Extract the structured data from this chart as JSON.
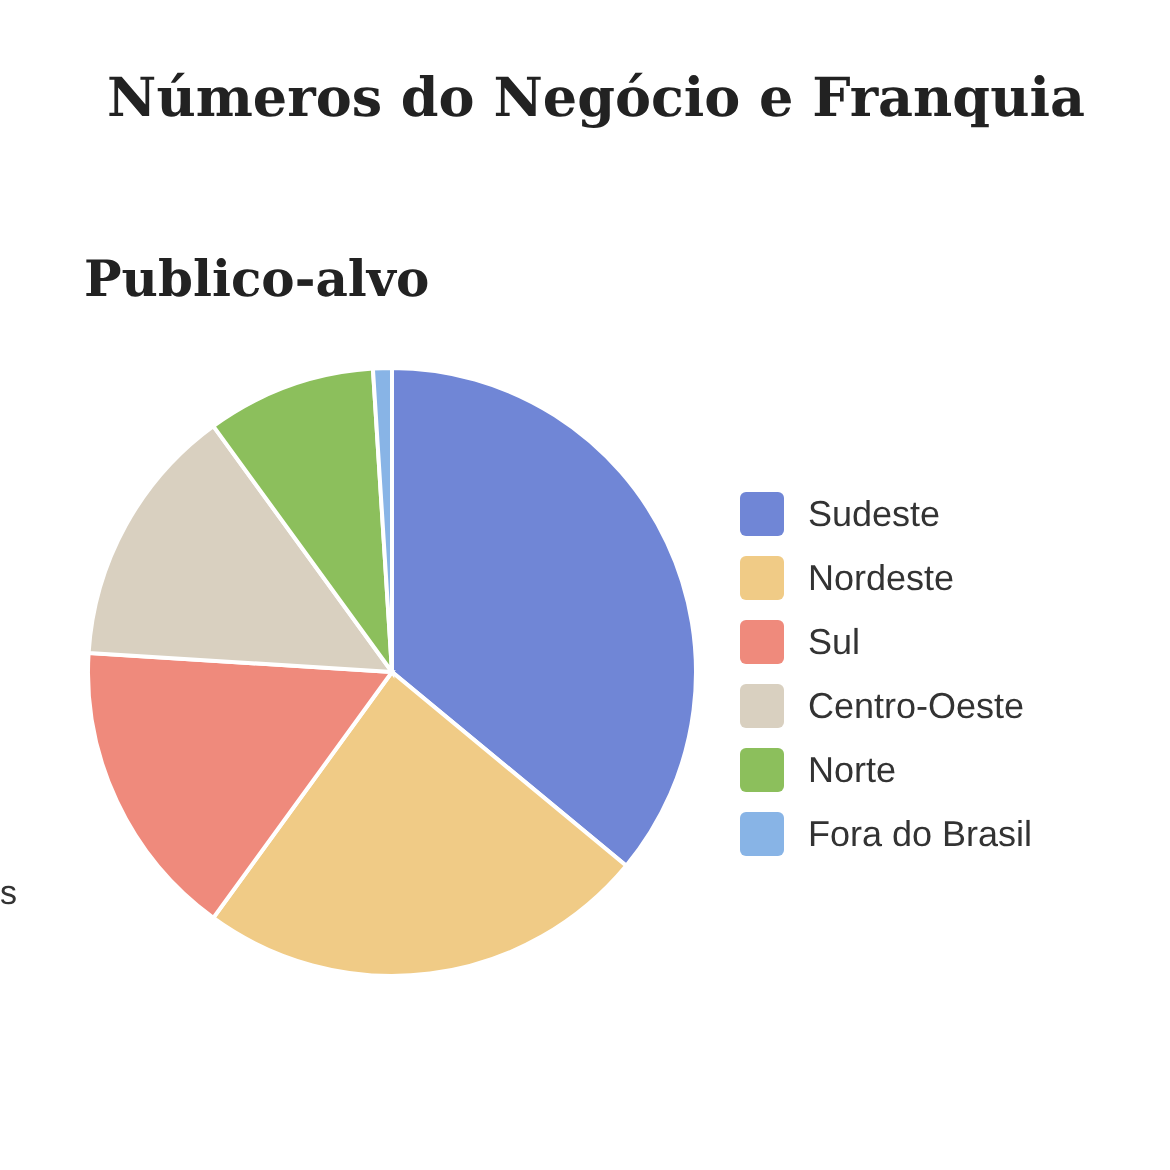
{
  "chart_data": {
    "type": "pie",
    "title": "Números do Negócio e Franquia",
    "subtitle": "Publico-alvo",
    "categories": [
      "Sudeste",
      "Nordeste",
      "Sul",
      "Centro-Oeste",
      "Norte",
      "Fora do Brasil"
    ],
    "values": [
      36,
      24,
      16,
      14,
      9,
      1
    ],
    "colors": [
      "#7086d6",
      "#f0cb86",
      "#ef8a7c",
      "#d9d0c0",
      "#8cbf5c",
      "#88b4e6"
    ],
    "legend": "right",
    "annotations": [
      "s"
    ]
  }
}
